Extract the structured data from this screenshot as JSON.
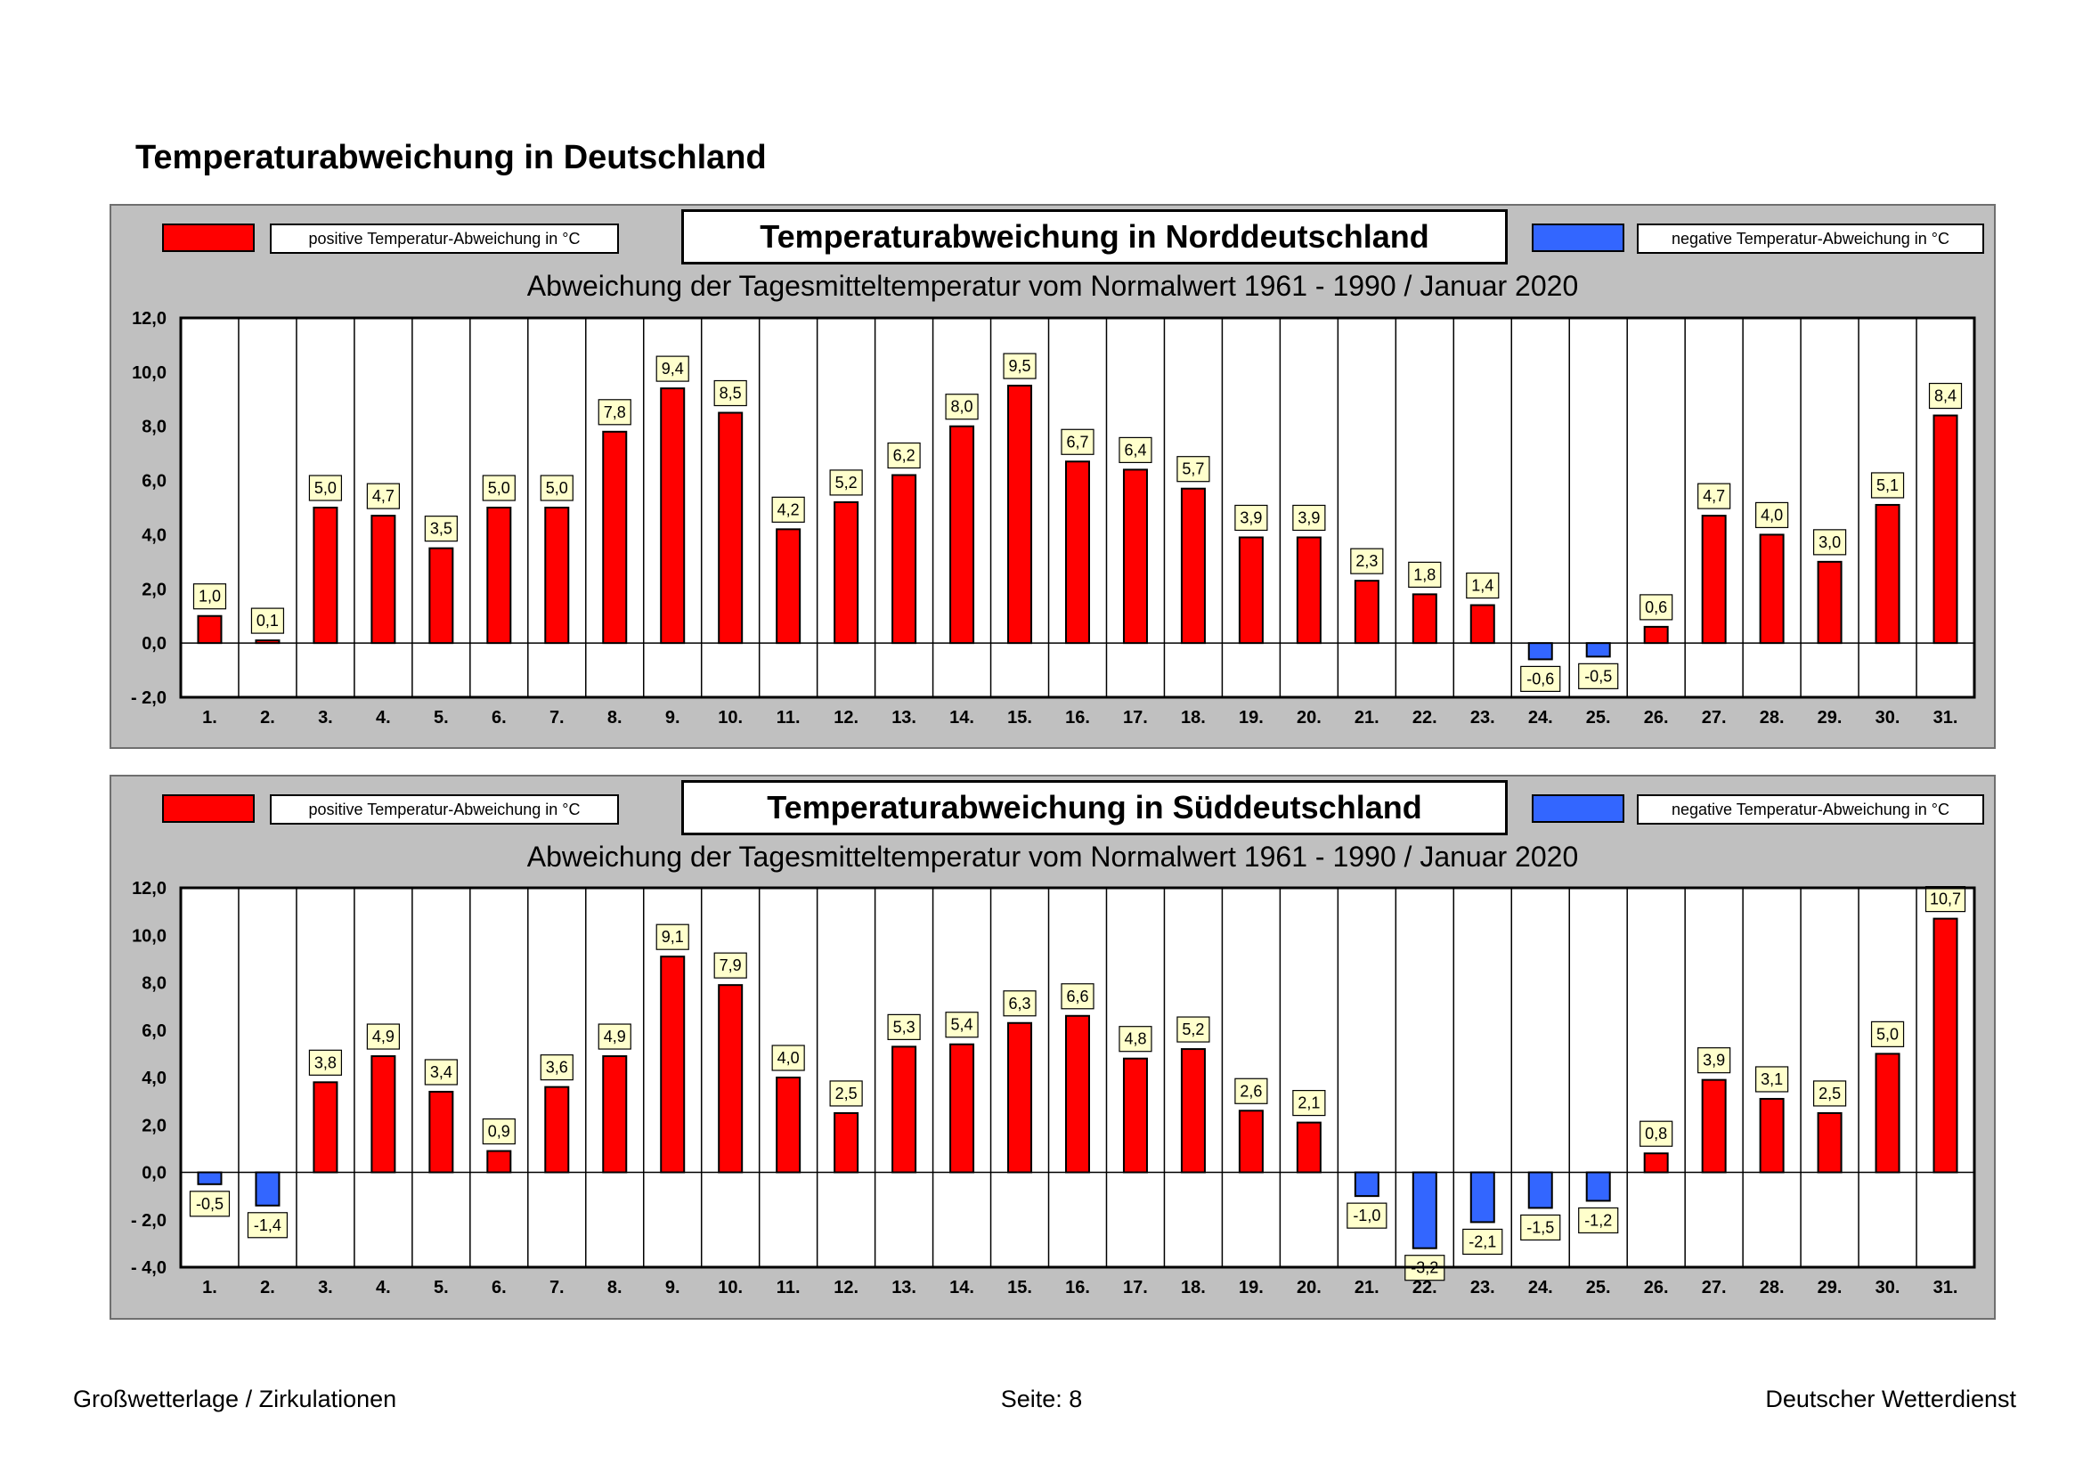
{
  "page": {
    "title": "Temperaturabweichung in Deutschland",
    "footer_left": "Großwetterlage / Zirkulationen",
    "footer_center": "Seite: 8",
    "footer_right": "Deutscher Wetterdienst"
  },
  "legend": {
    "positive_label": "positive Temperatur-Abweichung in °C",
    "negative_label": "negative Temperatur-Abweichung in °C",
    "positive_color": "#ff0000",
    "negative_color": "#3366ff"
  },
  "chart_data": [
    {
      "type": "bar",
      "title": "Temperaturabweichung in Norddeutschland",
      "subtitle": "Abweichung der Tagesmitteltemperatur vom Normalwert 1961 - 1990  /  Januar 2020",
      "categories": [
        "1.",
        "2.",
        "3.",
        "4.",
        "5.",
        "6.",
        "7.",
        "8.",
        "9.",
        "10.",
        "11.",
        "12.",
        "13.",
        "14.",
        "15.",
        "16.",
        "17.",
        "18.",
        "19.",
        "20.",
        "21.",
        "22.",
        "23.",
        "24.",
        "25.",
        "26.",
        "27.",
        "28.",
        "29.",
        "30.",
        "31."
      ],
      "values": [
        1.0,
        0.1,
        5.0,
        4.7,
        3.5,
        5.0,
        5.0,
        7.8,
        9.4,
        8.5,
        4.2,
        5.2,
        6.2,
        8.0,
        9.5,
        6.7,
        6.4,
        5.7,
        3.9,
        3.9,
        2.3,
        1.8,
        1.4,
        -0.6,
        -0.5,
        0.6,
        4.7,
        4.0,
        3.0,
        5.1,
        8.4
      ],
      "data_labels": [
        "1,0",
        "0,1",
        "5,0",
        "4,7",
        "3,5",
        "5,0",
        "5,0",
        "7,8",
        "9,4",
        "8,5",
        "4,2",
        "5,2",
        "6,2",
        "8,0",
        "9,5",
        "6,7",
        "6,4",
        "5,7",
        "3,9",
        "3,9",
        "2,3",
        "1,8",
        "1,4",
        "-0,6",
        "-0,5",
        "0,6",
        "4,7",
        "4,0",
        "3,0",
        "5,1",
        "8,4"
      ],
      "yticks": [
        -2,
        0,
        2,
        4,
        6,
        8,
        10,
        12
      ],
      "ytick_labels": [
        "- 2,0",
        "0,0",
        "2,0",
        "4,0",
        "6,0",
        "8,0",
        "10,0",
        "12,0"
      ],
      "ylim": [
        -2,
        12
      ],
      "xlabel": "",
      "ylabel": "",
      "grid": "vertical"
    },
    {
      "type": "bar",
      "title": "Temperaturabweichung in Süddeutschland",
      "subtitle": "Abweichung der Tagesmitteltemperatur vom Normalwert 1961 - 1990  /  Januar 2020",
      "categories": [
        "1.",
        "2.",
        "3.",
        "4.",
        "5.",
        "6.",
        "7.",
        "8.",
        "9.",
        "10.",
        "11.",
        "12.",
        "13.",
        "14.",
        "15.",
        "16.",
        "17.",
        "18.",
        "19.",
        "20.",
        "21.",
        "22.",
        "23.",
        "24.",
        "25.",
        "26.",
        "27.",
        "28.",
        "29.",
        "30.",
        "31."
      ],
      "values": [
        -0.5,
        -1.4,
        3.8,
        4.9,
        3.4,
        0.9,
        3.6,
        4.9,
        9.1,
        7.9,
        4.0,
        2.5,
        5.3,
        5.4,
        6.3,
        6.6,
        4.8,
        5.2,
        2.6,
        2.1,
        -1.0,
        -3.2,
        -2.1,
        -1.5,
        -1.2,
        0.8,
        3.9,
        3.1,
        2.5,
        5.0,
        10.7
      ],
      "data_labels": [
        "-0,5",
        "-1,4",
        "3,8",
        "4,9",
        "3,4",
        "0,9",
        "3,6",
        "4,9",
        "9,1",
        "7,9",
        "4,0",
        "2,5",
        "5,3",
        "5,4",
        "6,3",
        "6,6",
        "4,8",
        "5,2",
        "2,6",
        "2,1",
        "-1,0",
        "-3,2",
        "-2,1",
        "-1,5",
        "-1,2",
        "0,8",
        "3,9",
        "3,1",
        "2,5",
        "5,0",
        "10,7"
      ],
      "yticks": [
        -4,
        -2,
        0,
        2,
        4,
        6,
        8,
        10,
        12
      ],
      "ytick_labels": [
        "- 4,0",
        "- 2,0",
        "0,0",
        "2,0",
        "4,0",
        "6,0",
        "8,0",
        "10,0",
        "12,0"
      ],
      "ylim": [
        -4,
        12
      ],
      "xlabel": "",
      "ylabel": "",
      "grid": "vertical"
    }
  ]
}
